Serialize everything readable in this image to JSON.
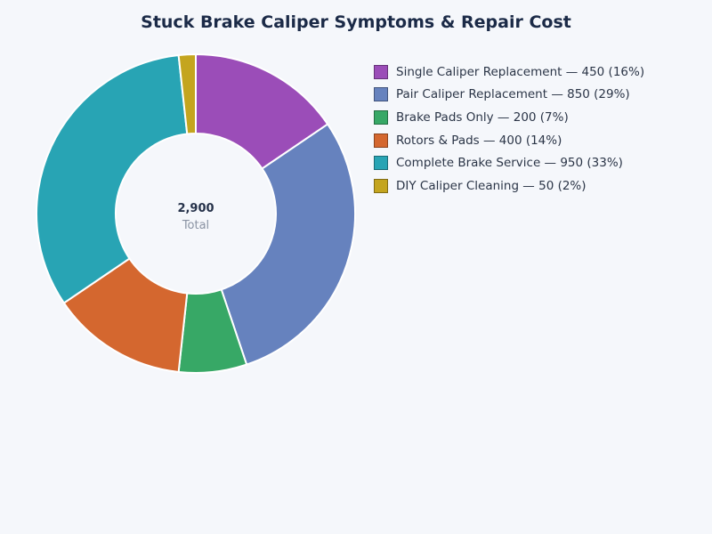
{
  "title": "Stuck Brake Caliper Symptoms & Repair Cost",
  "center": {
    "value": "2,900",
    "label": "Total"
  },
  "legend": [
    {
      "label": "Single Caliper Replacement — 450 (16%)",
      "color": "#9b4db8"
    },
    {
      "label": "Pair Caliper Replacement — 850 (29%)",
      "color": "#6682be"
    },
    {
      "label": "Brake Pads Only — 200 (7%)",
      "color": "#37a866"
    },
    {
      "label": "Rotors & Pads — 400 (14%)",
      "color": "#d4672f"
    },
    {
      "label": "Complete Brake Service — 950 (33%)",
      "color": "#28a4b4"
    },
    {
      "label": "DIY Caliper Cleaning — 50 (2%)",
      "color": "#c4a51f"
    }
  ],
  "chart_data": {
    "type": "pie",
    "variant": "donut",
    "title": "Stuck Brake Caliper Symptoms & Repair Cost",
    "categories": [
      "Single Caliper Replacement",
      "Pair Caliper Replacement",
      "Brake Pads Only",
      "Rotors & Pads",
      "Complete Brake Service",
      "DIY Caliper Cleaning"
    ],
    "values": [
      450,
      850,
      200,
      400,
      950,
      50
    ],
    "percentages": [
      16,
      29,
      7,
      14,
      33,
      2
    ],
    "colors": [
      "#9b4db8",
      "#6682be",
      "#37a866",
      "#d4672f",
      "#28a4b4",
      "#c4a51f"
    ],
    "total": 2900,
    "center_label": "Total",
    "legend_position": "right",
    "start_angle": "top, clockwise"
  }
}
